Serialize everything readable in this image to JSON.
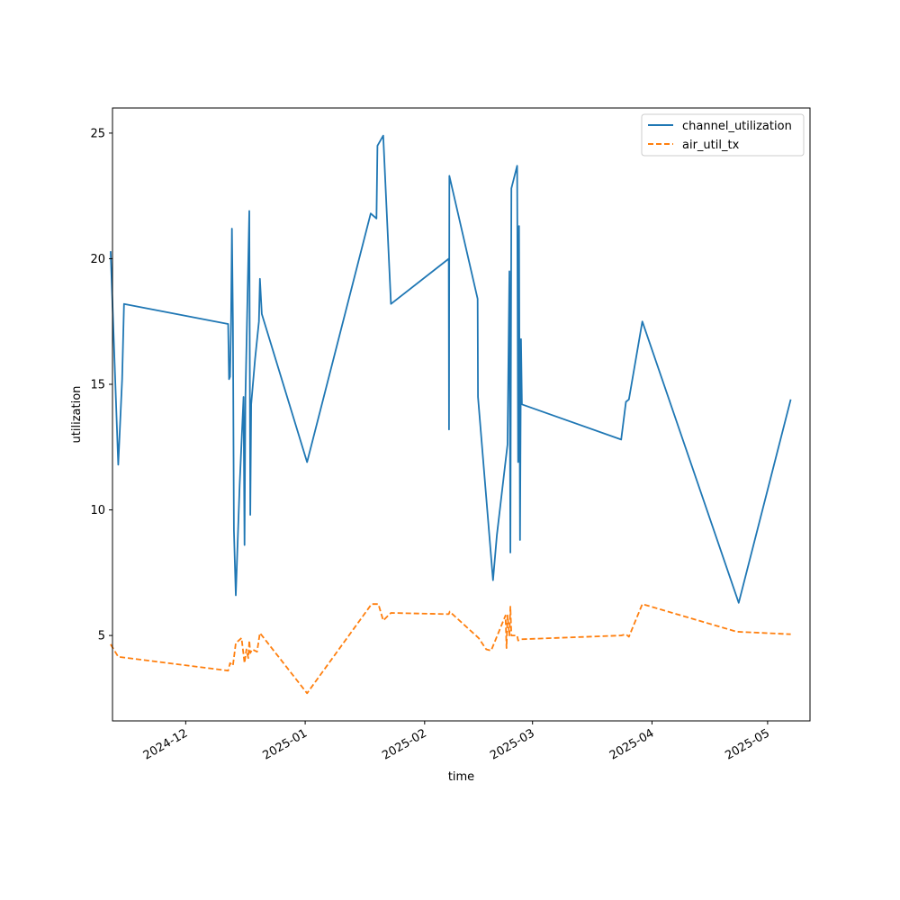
{
  "chart_data": {
    "type": "line",
    "title": "",
    "xlabel": "time",
    "ylabel": "utilization",
    "x_scale": "time",
    "xlim": [
      "2024-11-12",
      "2025-05-12"
    ],
    "ylim": [
      1.6,
      26.0
    ],
    "x_ticks": [
      "2024-12-01",
      "2025-01-01",
      "2025-02-01",
      "2025-03-01",
      "2025-04-01",
      "2025-05-01"
    ],
    "x_tick_labels": [
      "2024-12",
      "2025-01",
      "2025-02",
      "2025-03",
      "2025-04",
      "2025-05"
    ],
    "y_ticks": [
      5,
      10,
      15,
      20,
      25
    ],
    "grid": false,
    "legend_position": "top-right",
    "series": [
      {
        "name": "channel_utilization",
        "color": "#1f77b4",
        "style": "solid",
        "points": [
          [
            "2024-11-11T12:00",
            20.3
          ],
          [
            "2024-11-13T12:00",
            11.8
          ],
          [
            "2024-11-14T12:00",
            15.2
          ],
          [
            "2024-11-15T00:00",
            18.2
          ],
          [
            "2024-12-12T00:00",
            17.4
          ],
          [
            "2024-12-12T06:00",
            15.2
          ],
          [
            "2024-12-12T12:00",
            15.3
          ],
          [
            "2024-12-12T18:00",
            17.4
          ],
          [
            "2024-12-13T00:00",
            21.2
          ],
          [
            "2024-12-13T06:00",
            17.5
          ],
          [
            "2024-12-13T12:00",
            9.2
          ],
          [
            "2024-12-14T00:00",
            6.6
          ],
          [
            "2024-12-15T00:00",
            11.0
          ],
          [
            "2024-12-16T00:00",
            14.5
          ],
          [
            "2024-12-16T06:00",
            8.6
          ],
          [
            "2024-12-16T12:00",
            14.5
          ],
          [
            "2024-12-17T12:00",
            21.9
          ],
          [
            "2024-12-17T18:00",
            9.8
          ],
          [
            "2024-12-18T00:00",
            14.2
          ],
          [
            "2024-12-19T00:00",
            16.0
          ],
          [
            "2024-12-20T00:00",
            17.5
          ],
          [
            "2024-12-20T06:00",
            19.2
          ],
          [
            "2024-12-20T18:00",
            17.8
          ],
          [
            "2025-01-01T12:00",
            11.9
          ],
          [
            "2025-01-18T00:00",
            21.8
          ],
          [
            "2025-01-19T12:00",
            21.6
          ],
          [
            "2025-01-19T18:00",
            24.5
          ],
          [
            "2025-01-21T06:00",
            24.9
          ],
          [
            "2025-01-23T06:00",
            18.2
          ],
          [
            "2025-02-07T06:00",
            20.0
          ],
          [
            "2025-02-07T08:00",
            13.2
          ],
          [
            "2025-02-07T10:00",
            23.3
          ],
          [
            "2025-02-14T18:00",
            18.4
          ],
          [
            "2025-02-14T20:00",
            14.5
          ],
          [
            "2025-02-18T18:00",
            7.2
          ],
          [
            "2025-02-19T18:00",
            9.0
          ],
          [
            "2025-02-22T12:00",
            12.6
          ],
          [
            "2025-02-23T00:00",
            19.5
          ],
          [
            "2025-02-23T06:00",
            8.3
          ],
          [
            "2025-02-23T12:00",
            22.8
          ],
          [
            "2025-02-25T00:00",
            23.7
          ],
          [
            "2025-02-25T06:00",
            11.9
          ],
          [
            "2025-02-25T12:00",
            21.3
          ],
          [
            "2025-02-25T18:00",
            8.8
          ],
          [
            "2025-02-26T00:00",
            16.8
          ],
          [
            "2025-02-26T06:00",
            14.2
          ],
          [
            "2025-03-24T00:00",
            12.8
          ],
          [
            "2025-03-25T06:00",
            14.3
          ],
          [
            "2025-03-26T00:00",
            14.4
          ],
          [
            "2025-03-29T12:00",
            17.5
          ],
          [
            "2025-04-23T12:00",
            6.3
          ],
          [
            "2025-05-07T00:00",
            14.4
          ]
        ]
      },
      {
        "name": "air_util_tx",
        "color": "#ff7f0e",
        "style": "dashed",
        "points": [
          [
            "2024-11-11T12:00",
            4.65
          ],
          [
            "2024-11-13T12:00",
            4.15
          ],
          [
            "2024-12-12T00:00",
            3.6
          ],
          [
            "2024-12-12T12:00",
            3.9
          ],
          [
            "2024-12-13T06:00",
            3.8
          ],
          [
            "2024-12-14T00:00",
            4.7
          ],
          [
            "2024-12-15T12:00",
            4.9
          ],
          [
            "2024-12-16T06:00",
            3.9
          ],
          [
            "2024-12-16T18:00",
            4.45
          ],
          [
            "2024-12-17T06:00",
            4.1
          ],
          [
            "2024-12-17T12:00",
            4.8
          ],
          [
            "2024-12-17T18:00",
            4.3
          ],
          [
            "2024-12-18T06:00",
            4.45
          ],
          [
            "2024-12-19T12:00",
            4.35
          ],
          [
            "2024-12-20T06:00",
            5.1
          ],
          [
            "2025-01-01T12:00",
            2.7
          ],
          [
            "2025-01-18T06:00",
            6.25
          ],
          [
            "2025-01-20T00:00",
            6.25
          ],
          [
            "2025-01-21T06:00",
            5.6
          ],
          [
            "2025-01-23T06:00",
            5.9
          ],
          [
            "2025-02-07T06:00",
            5.85
          ],
          [
            "2025-02-07T12:00",
            5.95
          ],
          [
            "2025-02-15T00:00",
            4.9
          ],
          [
            "2025-02-17T00:00",
            4.45
          ],
          [
            "2025-02-18T06:00",
            4.4
          ],
          [
            "2025-02-22T00:00",
            5.8
          ],
          [
            "2025-02-22T06:00",
            4.5
          ],
          [
            "2025-02-22T12:00",
            5.8
          ],
          [
            "2025-02-23T00:00",
            5.0
          ],
          [
            "2025-02-23T06:00",
            6.15
          ],
          [
            "2025-02-23T12:00",
            5.0
          ],
          [
            "2025-02-25T00:00",
            5.0
          ],
          [
            "2025-02-25T06:00",
            4.8
          ],
          [
            "2025-02-26T00:00",
            4.85
          ],
          [
            "2025-03-24T00:00",
            5.0
          ],
          [
            "2025-03-25T06:00",
            5.05
          ],
          [
            "2025-03-26T00:00",
            4.95
          ],
          [
            "2025-03-29T12:00",
            6.25
          ],
          [
            "2025-04-23T00:00",
            5.15
          ],
          [
            "2025-05-07T00:00",
            5.05
          ]
        ]
      }
    ]
  }
}
